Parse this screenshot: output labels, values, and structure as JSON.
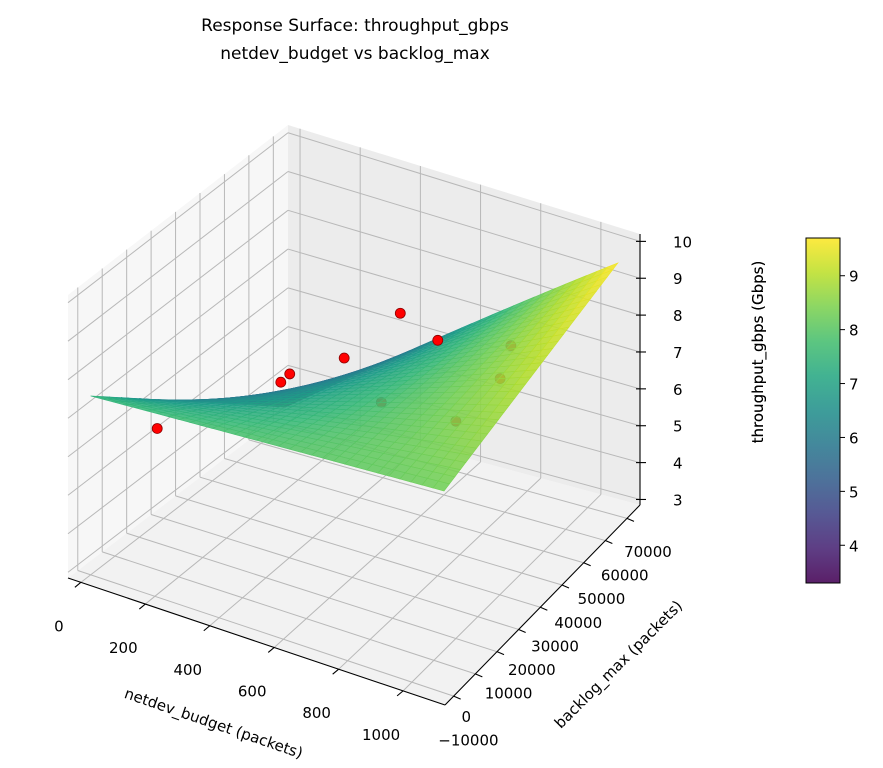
{
  "chart_data": {
    "type": "surface3d",
    "title": "Response Surface: throughput_gbps",
    "subtitle": "netdev_budget vs backlog_max",
    "xlabel": "netdev_budget (packets)",
    "ylabel": "backlog_max (packets)",
    "zlabel": "throughput_gbps (Gbps)",
    "xlim": [
      -40,
      1130
    ],
    "ylim": [
      -14000,
      76000
    ],
    "zlim": [
      2.85,
      10.2
    ],
    "xticks": [
      "0",
      "200",
      "400",
      "600",
      "800",
      "1000"
    ],
    "yticks": [
      "−10000",
      "0",
      "10000",
      "20000",
      "30000",
      "40000",
      "50000",
      "60000",
      "70000"
    ],
    "zticks": [
      "3",
      "4",
      "5",
      "6",
      "7",
      "8",
      "9",
      "10"
    ],
    "grid": true,
    "colormap": "viridis",
    "surface": {
      "x": [
        0,
        275,
        550,
        825,
        1100
      ],
      "y": [
        -10000,
        10000,
        30000,
        50000,
        70000
      ],
      "z": [
        [
          7.5,
          7.7,
          7.9,
          8.1,
          8.3
        ],
        [
          6.45,
          7.0,
          7.55,
          8.1,
          8.65
        ],
        [
          5.4,
          6.3,
          7.2,
          8.1,
          9.0
        ],
        [
          4.35,
          5.6,
          6.85,
          8.1,
          9.35
        ],
        [
          3.3,
          4.9,
          6.5,
          8.1,
          9.7
        ]
      ]
    },
    "points": [
      {
        "x": 170,
        "y": -5000,
        "z": 6.9
      },
      {
        "x": 290,
        "y": 31000,
        "z": 6.6
      },
      {
        "x": 250,
        "y": 40000,
        "z": 6.25
      },
      {
        "x": 350,
        "y": 50000,
        "z": 6.4
      },
      {
        "x": 380,
        "y": 70000,
        "z": 6.6
      },
      {
        "x": 580,
        "y": 60000,
        "z": 6.9
      },
      {
        "x": 620,
        "y": 30000,
        "z": 7.0
      },
      {
        "x": 1000,
        "y": 10000,
        "z": 8.7
      },
      {
        "x": 930,
        "y": 40000,
        "z": 7.9
      },
      {
        "x": 820,
        "y": 60000,
        "z": 7.35
      }
    ],
    "point_color": "#ff0000",
    "colorbar": {
      "label": "throughput_gbps (Gbps)",
      "range": [
        3.3,
        9.7
      ],
      "ticks": [
        "4",
        "5",
        "6",
        "7",
        "8",
        "9"
      ]
    }
  }
}
